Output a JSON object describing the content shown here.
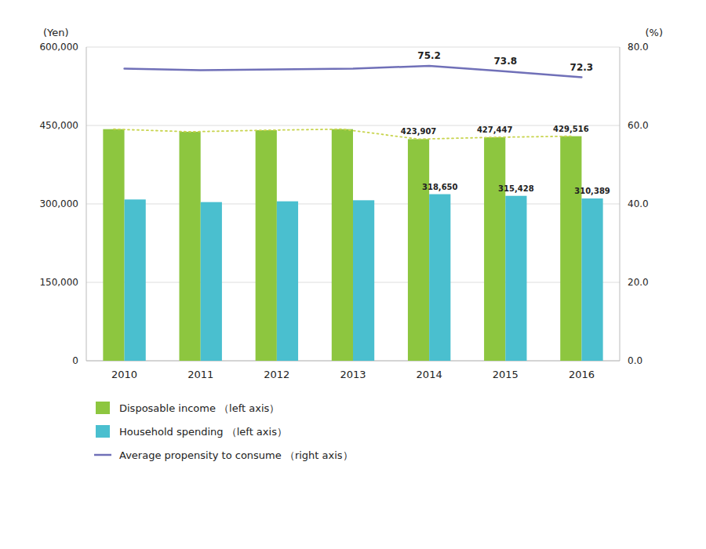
{
  "chart_data": {
    "type": "bar",
    "categories": [
      "2010",
      "2011",
      "2012",
      "2013",
      "2014",
      "2015",
      "2016"
    ],
    "series": [
      {
        "name": "Disposable income （left axis）",
        "color": "#8dc63f",
        "values": [
          443000,
          438000,
          441000,
          443000,
          423907,
          427447,
          429516
        ],
        "value_labels": [
          null,
          null,
          null,
          null,
          "423,907",
          "427,447",
          "429,516"
        ]
      },
      {
        "name": "Household spending （left axis）",
        "color": "#4abfcf",
        "values": [
          308500,
          303500,
          305000,
          307000,
          318650,
          315428,
          310389
        ],
        "value_labels": [
          null,
          null,
          null,
          null,
          "318,650",
          "315,428",
          "310,389"
        ]
      },
      {
        "type": "line",
        "color": "#c8d44e",
        "line_style": "dotted",
        "values": [
          443000,
          438000,
          441000,
          443000,
          423907,
          427447,
          429516
        ]
      },
      {
        "name": "Average propensity to consume （right axis）",
        "type": "line",
        "axis": "y2",
        "color": "#7070b8",
        "line_style": "solid",
        "values": [
          74.5,
          74.1,
          74.3,
          74.5,
          75.2,
          73.8,
          72.3
        ],
        "value_labels": [
          null,
          null,
          null,
          null,
          "75.2",
          "73.8",
          "72.3"
        ]
      }
    ],
    "ylabel": "(Yen)",
    "y2label": "(%)",
    "ylim": [
      0,
      600000
    ],
    "yticks": [
      0,
      {
        "value": 150000,
        "label": "150,000"
      },
      {
        "value": 300000,
        "label": "300,000"
      },
      {
        "value": 450000,
        "label": "450,000"
      },
      {
        "value": 600000,
        "label": "600,000"
      }
    ],
    "y2lim": [
      0.0,
      80.0
    ],
    "y2ticks": [
      {
        "value": 0,
        "label": "0.0"
      },
      {
        "value": 20,
        "label": "20.0"
      },
      {
        "value": 40,
        "label": "40.0"
      },
      {
        "value": 60,
        "label": "60.0"
      },
      {
        "value": 80,
        "label": "80.0"
      }
    ],
    "grid": true,
    "legend": "bottom",
    "data_labels": true
  }
}
